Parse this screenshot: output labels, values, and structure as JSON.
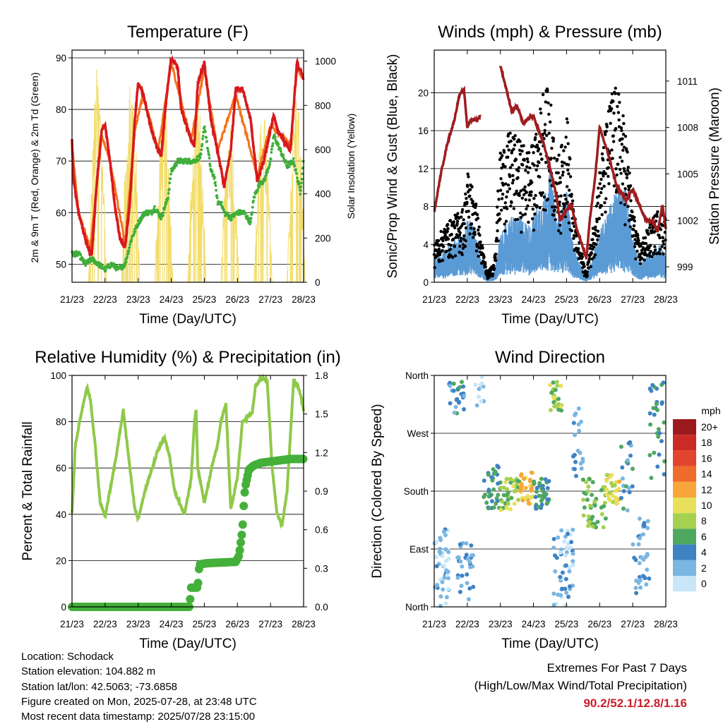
{
  "time_axis": {
    "label": "Time (Day/UTC)",
    "ticks": [
      "21/23",
      "22/23",
      "23/23",
      "24/23",
      "25/23",
      "26/23",
      "27/23",
      "28/23"
    ]
  },
  "palette": {
    "temp_2m": "#d7191c",
    "temp_9m": "#f4731f",
    "dewpoint": "#3fae3a",
    "insolation": "#f2dc6a",
    "wind": "#000000",
    "gust": "#5b9bd5",
    "pressure": "#9e1d20",
    "rh": "#8fc94a",
    "precip": "#44b03a"
  },
  "wind_colorbar": {
    "unit": "mph",
    "labels": [
      "20+",
      "18",
      "16",
      "14",
      "12",
      "10",
      "8",
      "6",
      "4",
      "2",
      "0"
    ],
    "colors": [
      "#9b1a1d",
      "#cc2b25",
      "#e2452d",
      "#f06c2c",
      "#f8a53a",
      "#e8e05a",
      "#a6d050",
      "#4ea860",
      "#3e82c4",
      "#7ab6e2",
      "#c8e6f7"
    ]
  },
  "info": {
    "location": "Location: Schodack",
    "elevation": "Station elevation: 104.882 m",
    "latlon": "Station lat/lon: 42.5063; -73.6858",
    "created": "Figure created on Mon, 2025-07-28, at 23:48 UTC",
    "recent": "Most recent data timestamp: 2025/07/28 23:15:00"
  },
  "extremes": {
    "title": "Extremes For Past 7 Days",
    "subtitle": "(High/Low/Max Wind/Total Precipitation)",
    "values": "90.2/52.1/12.8/1.16"
  },
  "chart_data": [
    {
      "id": "temperature",
      "type": "line",
      "title": "Temperature (F)",
      "xlabel": "Time (Day/UTC)",
      "ylabel": "2m & 9m T (Red, Orange) & 2m Td (Green)",
      "y2label": "Solar Insolation (Yellow)",
      "xlim": [
        0,
        7
      ],
      "ylim": [
        46.5,
        91.5
      ],
      "y2lim": [
        0,
        1050
      ],
      "yticks": [
        50,
        60,
        70,
        80,
        90
      ],
      "y2ticks": [
        0,
        200,
        400,
        600,
        800,
        1000
      ],
      "series": [
        {
          "key": "temp_2m",
          "x": [
            0,
            0.05,
            0.2,
            0.4,
            0.55,
            0.6,
            0.75,
            0.9,
            1.0,
            1.15,
            1.3,
            1.45,
            1.6,
            1.75,
            1.9,
            2.0,
            2.15,
            2.4,
            2.6,
            2.7,
            2.85,
            3.0,
            3.2,
            3.3,
            3.6,
            3.7,
            3.8,
            4.0,
            4.2,
            4.4,
            4.6,
            4.8,
            4.95,
            5.15,
            5.4,
            5.6,
            5.8,
            6.0,
            6.1,
            6.2,
            6.6,
            6.8,
            7.0
          ],
          "values": [
            74,
            66,
            60,
            55,
            52,
            52,
            66,
            76,
            77,
            70,
            61,
            55,
            53,
            62,
            78,
            85,
            83,
            76,
            72,
            71,
            82,
            90,
            88,
            80,
            74,
            73,
            85,
            89,
            78,
            72,
            65,
            72,
            84,
            84,
            78,
            66,
            70,
            76,
            79,
            76,
            72,
            89,
            86
          ]
        },
        {
          "key": "temp_9m",
          "x": [
            0,
            0.2,
            0.55,
            0.9,
            1.15,
            1.6,
            1.9,
            2.15,
            2.6,
            3.0,
            3.6,
            4.0,
            4.4,
            4.95,
            5.6,
            6.0,
            6.6,
            6.8,
            7.0
          ],
          "values": [
            73,
            60,
            53,
            75,
            70,
            54,
            76,
            83,
            72,
            89,
            74,
            88,
            72,
            83,
            67,
            77,
            73,
            88,
            86
          ]
        },
        {
          "key": "dewpoint",
          "x": [
            0,
            0.2,
            0.4,
            0.6,
            0.8,
            1.0,
            1.2,
            1.4,
            1.6,
            1.8,
            2.0,
            2.2,
            2.4,
            2.5,
            2.7,
            2.9,
            3.0,
            3.2,
            3.5,
            3.7,
            3.9,
            4.0,
            4.2,
            4.3,
            4.4,
            4.5,
            4.6,
            4.8,
            5.0,
            5.2,
            5.4,
            5.5,
            5.7,
            5.8,
            6.0,
            6.1,
            6.3,
            6.5,
            6.7,
            6.9,
            7.0
          ],
          "values": [
            52,
            52,
            50,
            51,
            50,
            49,
            50,
            49,
            50,
            55,
            58,
            60,
            60,
            61,
            59,
            63,
            68,
            70,
            70,
            70,
            71,
            77,
            68,
            67,
            62,
            62,
            60,
            59,
            60,
            60,
            58,
            63,
            66,
            66,
            70,
            75,
            72,
            69,
            70,
            64,
            70
          ]
        }
      ],
      "insolation": {
        "days": [
          0,
          1,
          2,
          3,
          4,
          5,
          6
        ],
        "peaks": [
          990,
          1010,
          860,
          900,
          760,
          790,
          920
        ]
      }
    },
    {
      "id": "winds",
      "type": "scatter",
      "title": "Winds (mph) & Pressure (mb)",
      "xlabel": "Time (Day/UTC)",
      "ylabel": "Sonic/Prop Wind & Gust (Blue, Black)",
      "y2label": "Station Pressure (Maroon)",
      "xlim": [
        0,
        7
      ],
      "ylim": [
        0,
        24.5
      ],
      "y2lim": [
        998,
        1013
      ],
      "yticks": [
        0,
        4,
        8,
        12,
        16,
        20
      ],
      "y2ticks": [
        999,
        1002,
        1005,
        1008,
        1011
      ],
      "wind_envelope": {
        "x": [
          0,
          0.3,
          0.6,
          0.9,
          1.0,
          1.2,
          1.4,
          1.6,
          1.8,
          2.0,
          2.3,
          2.6,
          2.9,
          3.1,
          3.3,
          3.5,
          3.7,
          3.9,
          4.0,
          4.2,
          4.4,
          4.6,
          4.8,
          5.0,
          5.2,
          5.4,
          5.6,
          5.8,
          6.0,
          6.2,
          6.5,
          6.8,
          7.0
        ],
        "blue_max": [
          2.5,
          3.5,
          4.5,
          5,
          7,
          6,
          3,
          0.5,
          1,
          5,
          7,
          7,
          6,
          8,
          9,
          12,
          7,
          8,
          10,
          4,
          2,
          0.5,
          3,
          6,
          7,
          9,
          10,
          10,
          5,
          2,
          3,
          4,
          3
        ],
        "black_max": [
          4,
          6,
          7,
          8,
          12,
          10,
          5,
          1,
          2,
          14,
          16,
          15,
          14,
          16,
          21,
          20,
          13,
          15,
          19,
          8,
          4,
          1,
          6,
          12,
          17,
          21,
          20,
          16,
          8,
          4,
          6,
          8,
          7
        ]
      },
      "pressure": {
        "x": [
          0,
          0.2,
          0.4,
          0.6,
          0.75,
          0.9,
          1.0,
          1.1,
          1.3,
          1.4,
          1.5,
          1.6,
          1.7,
          1.8,
          1.95,
          2.0,
          2.2,
          2.35,
          2.5,
          2.7,
          2.9,
          3.0,
          3.3,
          3.5,
          3.7,
          3.8,
          4.0,
          4.15,
          4.3,
          4.5,
          4.6,
          4.7,
          4.85,
          5.0,
          5.3,
          5.5,
          5.8,
          6.0,
          6.2,
          6.4,
          6.6,
          6.75,
          6.9,
          7.0
        ],
        "values": [
          1002.5,
          1005,
          1007,
          1008.4,
          1010,
          1010.5,
          1008,
          1008.5,
          1008.5,
          1008.8,
          null,
          null,
          null,
          null,
          null,
          1012,
          1010.3,
          1009,
          1009.4,
          1008.2,
          1008.7,
          1008.7,
          1007,
          1005.4,
          1003.5,
          1002,
          1002.7,
          1003,
          1001.5,
          1000.2,
          999.5,
          1002,
          1004.5,
          1008,
          1006,
          1004.3,
          1003.3,
          1004,
          1003,
          1002,
          1002,
          1001.3,
          1003,
          1001.5
        ]
      }
    },
    {
      "id": "humidity",
      "type": "line",
      "title": "Relative Humidity (%) & Precipitation (in)",
      "xlabel": "Time (Day/UTC)",
      "ylabel": "Percent & Total Rainfall",
      "xlim": [
        0,
        7
      ],
      "ylim": [
        0,
        100
      ],
      "y2lim": [
        0,
        1.8
      ],
      "yticks": [
        0,
        20,
        40,
        60,
        80,
        100
      ],
      "y2ticks": [
        0.0,
        0.3,
        0.6,
        0.9,
        1.2,
        1.5,
        1.8
      ],
      "y2ticklabels": [
        "0.0",
        "0.3",
        "0.6",
        "0.9",
        "1.2",
        "1.5",
        "1.8"
      ],
      "series": [
        {
          "key": "rh",
          "x": [
            0,
            0.1,
            0.3,
            0.45,
            0.55,
            0.7,
            0.85,
            1.0,
            1.3,
            1.55,
            1.75,
            1.9,
            2.0,
            2.2,
            2.6,
            2.8,
            2.95,
            3.1,
            3.4,
            3.6,
            3.7,
            3.75,
            3.8,
            4.0,
            4.25,
            4.4,
            4.5,
            4.65,
            4.8,
            5.0,
            5.15,
            5.45,
            5.55,
            5.75,
            5.9,
            6.05,
            6.2,
            6.35,
            6.5,
            6.7,
            6.8,
            6.9,
            7.0
          ],
          "values": [
            40,
            70,
            85,
            95,
            90,
            70,
            45,
            39,
            62,
            85,
            60,
            42,
            38,
            50,
            68,
            73,
            65,
            50,
            40,
            55,
            80,
            85,
            60,
            45,
            62,
            70,
            80,
            88,
            42,
            56,
            80,
            84,
            96,
            99,
            98,
            60,
            40,
            35,
            50,
            98,
            96,
            92,
            85
          ]
        },
        {
          "key": "precip",
          "x": [
            0,
            3.3,
            3.55,
            3.6,
            3.8,
            3.85,
            4.1,
            4.95,
            5.05,
            5.15,
            5.18,
            5.2,
            5.25,
            5.35,
            5.5,
            5.7,
            6.0,
            6.3,
            6.6,
            7.0
          ],
          "values": [
            0,
            0,
            0,
            0.15,
            0.15,
            0.33,
            0.34,
            0.35,
            0.4,
            0.6,
            0.72,
            0.85,
            0.95,
            1.07,
            1.1,
            1.12,
            1.13,
            1.14,
            1.15,
            1.15
          ]
        }
      ]
    },
    {
      "id": "wind_direction",
      "type": "scatter",
      "title": "Wind Direction",
      "xlabel": "Time (Day/UTC)",
      "ylabel": "Direction (Colored By Speed)",
      "xlim": [
        0,
        7
      ],
      "ylim": [
        0,
        360
      ],
      "yticks": [
        0,
        90,
        180,
        270,
        360
      ],
      "yticklabels": [
        "North",
        "East",
        "South",
        "West",
        "North"
      ],
      "clusters": [
        {
          "x0": 0.0,
          "x1": 0.45,
          "d0": 0,
          "d1": 130,
          "s": 2,
          "n": 45
        },
        {
          "x0": 0.45,
          "x1": 0.9,
          "d0": 300,
          "d1": 350,
          "s": 4,
          "n": 25
        },
        {
          "x0": 0.7,
          "x1": 1.2,
          "d0": 10,
          "d1": 100,
          "s": 3,
          "n": 30
        },
        {
          "x0": 1.2,
          "x1": 1.5,
          "d0": 300,
          "d1": 360,
          "s": 1,
          "n": 10
        },
        {
          "x0": 1.5,
          "x1": 2.0,
          "d0": 150,
          "d1": 220,
          "s": 5,
          "n": 35
        },
        {
          "x0": 2.0,
          "x1": 2.6,
          "d0": 150,
          "d1": 200,
          "s": 8,
          "n": 40
        },
        {
          "x0": 2.6,
          "x1": 3.0,
          "d0": 160,
          "d1": 210,
          "s": 11,
          "n": 35
        },
        {
          "x0": 3.0,
          "x1": 3.5,
          "d0": 150,
          "d1": 200,
          "s": 5,
          "n": 35
        },
        {
          "x0": 3.5,
          "x1": 3.85,
          "d0": 300,
          "d1": 350,
          "s": 8,
          "n": 25
        },
        {
          "x0": 3.6,
          "x1": 4.2,
          "d0": 0,
          "d1": 120,
          "s": 2,
          "n": 50
        },
        {
          "x0": 4.2,
          "x1": 4.5,
          "d0": 200,
          "d1": 320,
          "s": 3,
          "n": 20
        },
        {
          "x0": 4.5,
          "x1": 5.2,
          "d0": 120,
          "d1": 200,
          "s": 7,
          "n": 45
        },
        {
          "x0": 5.2,
          "x1": 5.6,
          "d0": 160,
          "d1": 210,
          "s": 10,
          "n": 30
        },
        {
          "x0": 5.6,
          "x1": 6.0,
          "d0": 150,
          "d1": 260,
          "s": 4,
          "n": 20
        },
        {
          "x0": 6.0,
          "x1": 6.5,
          "d0": 20,
          "d1": 140,
          "s": 3,
          "n": 35
        },
        {
          "x0": 6.5,
          "x1": 7.0,
          "d0": 200,
          "d1": 350,
          "s": 5,
          "n": 30
        }
      ]
    }
  ]
}
